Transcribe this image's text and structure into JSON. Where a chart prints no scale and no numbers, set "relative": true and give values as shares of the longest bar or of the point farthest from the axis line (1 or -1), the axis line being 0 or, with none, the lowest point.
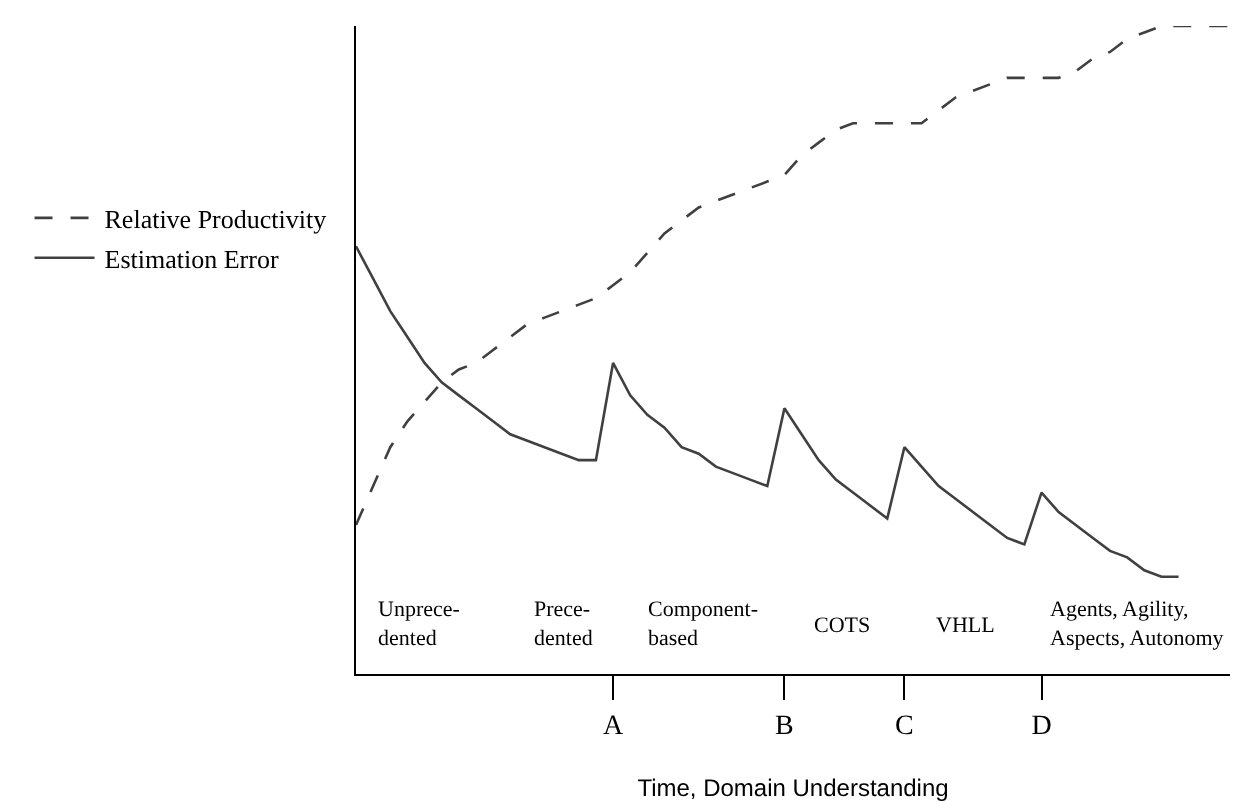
{
  "chart_data": {
    "type": "line",
    "relative": true,
    "xlabel": "Time, Domain Understanding",
    "categories": [
      null,
      null,
      null,
      null,
      null,
      null,
      null,
      null,
      null,
      null,
      null,
      null,
      null,
      null,
      null,
      "A",
      null,
      null,
      null,
      null,
      null,
      null,
      null,
      null,
      null,
      "B",
      null,
      null,
      null,
      null,
      null,
      null,
      "C",
      null,
      null,
      null,
      null,
      null,
      null,
      null,
      "D",
      null,
      null,
      null,
      null,
      null,
      null,
      null,
      null,
      null,
      null,
      null
    ],
    "tick_labels": "x",
    "grid": false,
    "legend": "left",
    "marker": "none",
    "series": [
      {
        "name": "Relative Productivity",
        "color": "#404040",
        "line_style": "dashed",
        "values": [
          0.23,
          0.29,
          0.35,
          0.39,
          0.42,
          0.45,
          0.47,
          0.48,
          0.5,
          0.52,
          0.54,
          0.55,
          0.56,
          0.57,
          0.58,
          0.6,
          0.62,
          0.65,
          0.68,
          0.7,
          0.72,
          0.73,
          0.74,
          0.75,
          0.76,
          0.77,
          0.8,
          0.82,
          0.84,
          0.85,
          0.85,
          0.85,
          0.85,
          0.85,
          0.87,
          0.89,
          0.9,
          0.91,
          0.92,
          0.92,
          0.92,
          0.92,
          0.93,
          0.95,
          0.96,
          0.98,
          0.99,
          1,
          1,
          1,
          1,
          1
        ]
      },
      {
        "name": "Estimation Error",
        "color": "#404040",
        "line_style": "solid",
        "values": [
          0.66,
          0.61,
          0.56,
          0.52,
          0.48,
          0.45,
          0.43,
          0.41,
          0.39,
          0.37,
          0.36,
          0.35,
          0.34,
          0.33,
          0.33,
          0.48,
          0.43,
          0.4,
          0.38,
          0.35,
          0.34,
          0.32,
          0.31,
          0.3,
          0.29,
          0.41,
          0.37,
          0.33,
          0.3,
          0.28,
          0.26,
          0.24,
          0.35,
          0.32,
          0.29,
          0.27,
          0.25,
          0.23,
          0.21,
          0.2,
          0.28,
          0.25,
          0.23,
          0.21,
          0.19,
          0.18,
          0.16,
          0.15,
          0.15,
          null,
          null,
          null
        ]
      }
    ],
    "annotations": [
      "Unprece-\ndented",
      "Prece-\ndented",
      "Component-\nbased",
      "COTS",
      "VHLL",
      "Agents, Agility,\nAspects, Autonomy"
    ]
  }
}
